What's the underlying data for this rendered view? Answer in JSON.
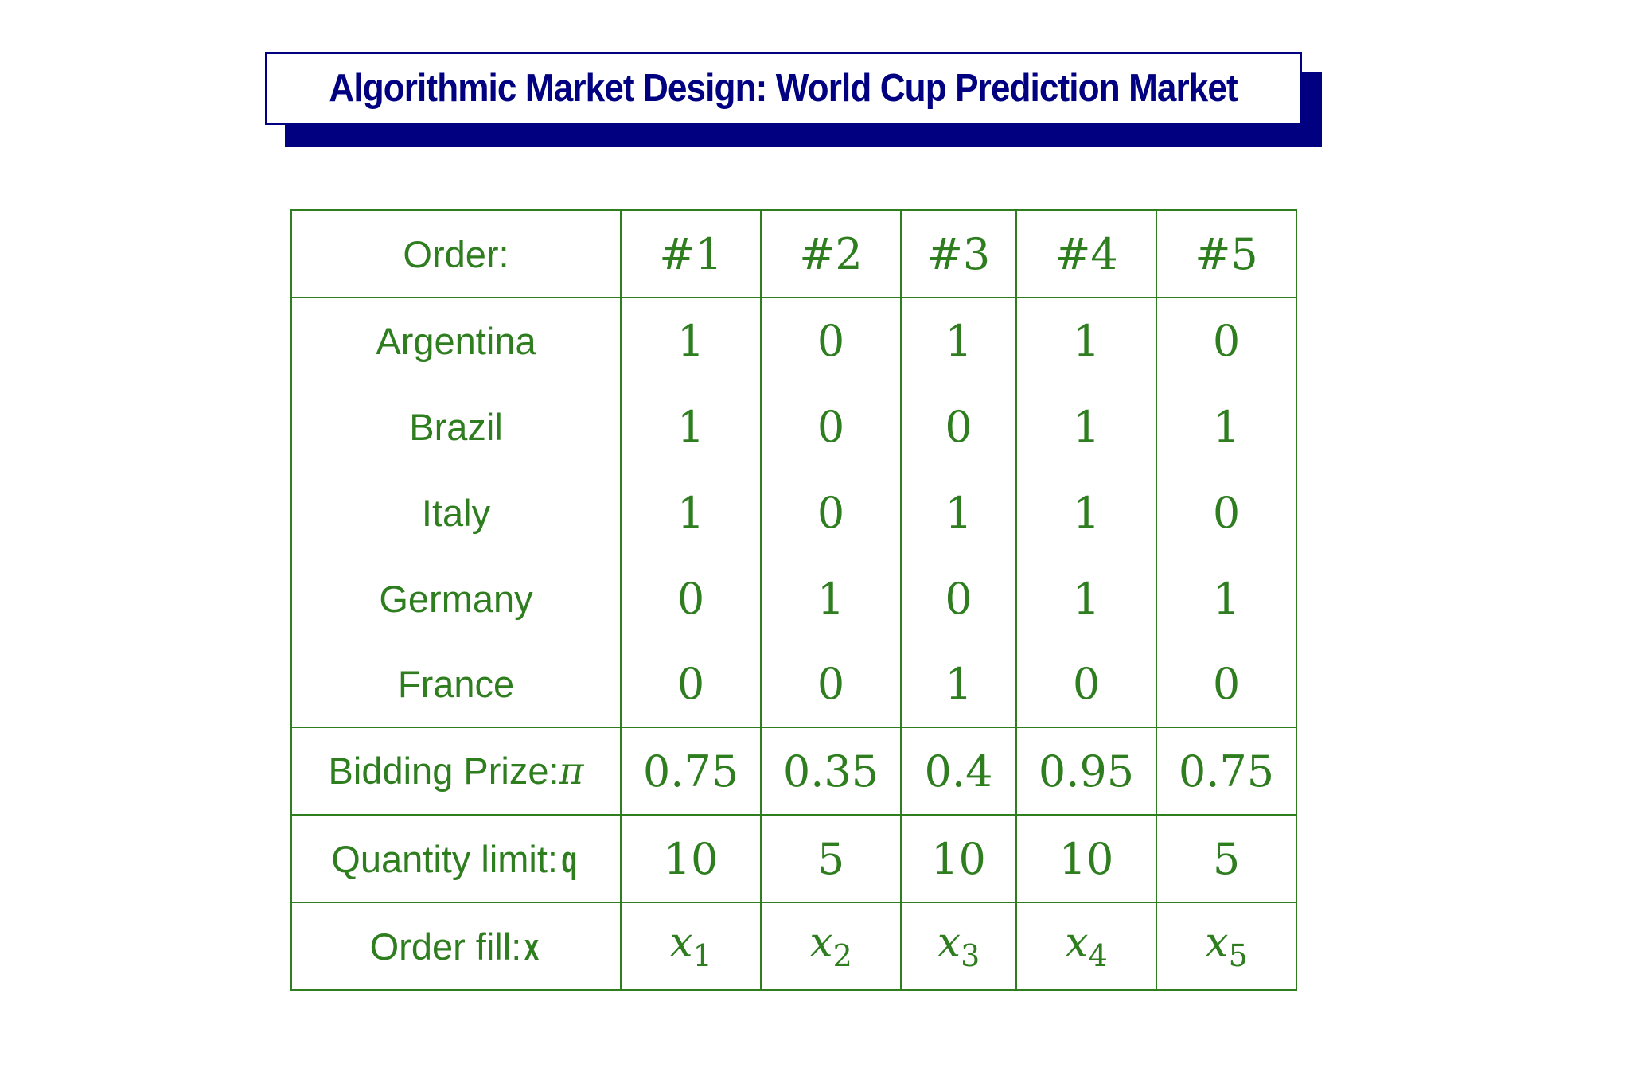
{
  "title": "Algorithmic Market Design: World Cup Prediction Market",
  "table": {
    "header_label": "Order:",
    "orders": [
      "#1",
      "#2",
      "#3",
      "#4",
      "#5"
    ],
    "countries": [
      {
        "name": "Argentina",
        "values": [
          "1",
          "0",
          "1",
          "1",
          "0"
        ]
      },
      {
        "name": "Brazil",
        "values": [
          "1",
          "0",
          "0",
          "1",
          "1"
        ]
      },
      {
        "name": "Italy",
        "values": [
          "1",
          "0",
          "1",
          "1",
          "0"
        ]
      },
      {
        "name": "Germany",
        "values": [
          "0",
          "1",
          "0",
          "1",
          "1"
        ]
      },
      {
        "name": "France",
        "values": [
          "0",
          "0",
          "1",
          "0",
          "0"
        ]
      }
    ],
    "bidding_prize": {
      "label": "Bidding Prize:",
      "symbol": "π",
      "values": [
        "0.75",
        "0.35",
        "0.4",
        "0.95",
        "0.75"
      ]
    },
    "quantity_limit": {
      "label": "Quantity limit:",
      "symbol": "q",
      "values": [
        "10",
        "5",
        "10",
        "10",
        "5"
      ]
    },
    "order_fill": {
      "label": "Order fill:",
      "symbol": "x",
      "var": "x",
      "subscripts": [
        "1",
        "2",
        "3",
        "4",
        "5"
      ]
    }
  },
  "colors": {
    "title": "#000080",
    "table": "#2e7d1f"
  }
}
